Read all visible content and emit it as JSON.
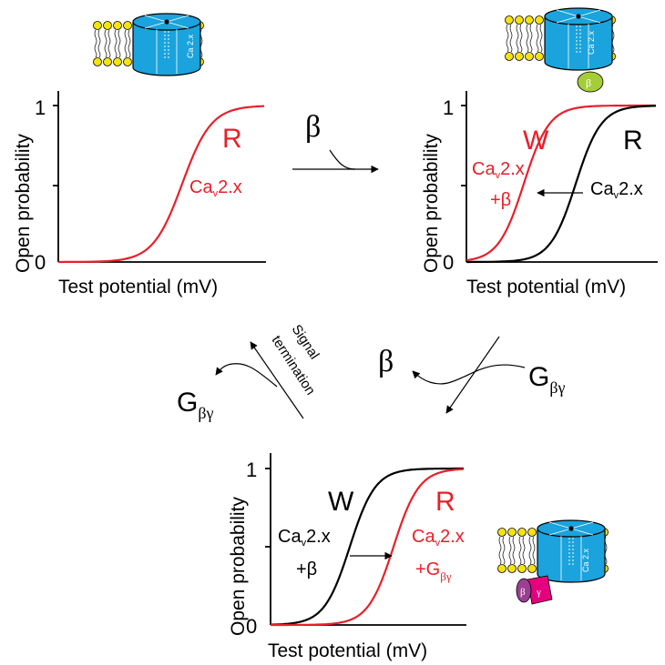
{
  "colors": {
    "red": "#e8202a",
    "black": "#000000",
    "channel_blue": "#1aa3dd",
    "lipid_yellow": "#f5e20f",
    "beta_green": "#a4cd39",
    "beta_purple": "#9b3f92",
    "gamma_magenta": "#e5007e"
  },
  "channel_label": "Ca 2.x",
  "beta_small": "β",
  "gamma_small": "γ",
  "panel_top_left": {
    "ylabel": "Open probability",
    "xlabel": "Test potential (mV)",
    "tick_1": "1",
    "tick_0": "0",
    "state_R": "R",
    "label_red": "Cav2.x",
    "label_red_main": "Ca",
    "label_red_sub": "v",
    "label_red_rest": "2.x"
  },
  "panel_top_right": {
    "ylabel": "Open probability",
    "xlabel": "Test potential (mV)",
    "tick_1": "1",
    "tick_0": "0",
    "state_W": "W",
    "state_R": "R",
    "label_red_main": "Ca",
    "label_red_sub": "v",
    "label_red_rest": "2.x",
    "label_red_line2": "+β",
    "label_black_main": "Ca",
    "label_black_sub": "v",
    "label_black_rest": "2.x"
  },
  "panel_bottom": {
    "ylabel": "Open probability",
    "xlabel": "Test potential (mV)",
    "tick_1": "1",
    "tick_0": "0",
    "state_W": "W",
    "state_R": "R",
    "label_black_main": "Ca",
    "label_black_sub": "v",
    "label_black_rest": "2.x",
    "label_black_line2": "+β",
    "label_red_main": "Ca",
    "label_red_sub": "v",
    "label_red_rest": "2.x",
    "label_red_line2_main": "+G",
    "label_red_line2_sub": "βγ"
  },
  "arrows": {
    "beta_top": "β",
    "beta_mid": "β",
    "g_main": "G",
    "g_sub": "βγ",
    "g_left_main": "G",
    "g_left_sub": "βγ",
    "signal_line1": "Signal",
    "signal_line2": "termination"
  }
}
